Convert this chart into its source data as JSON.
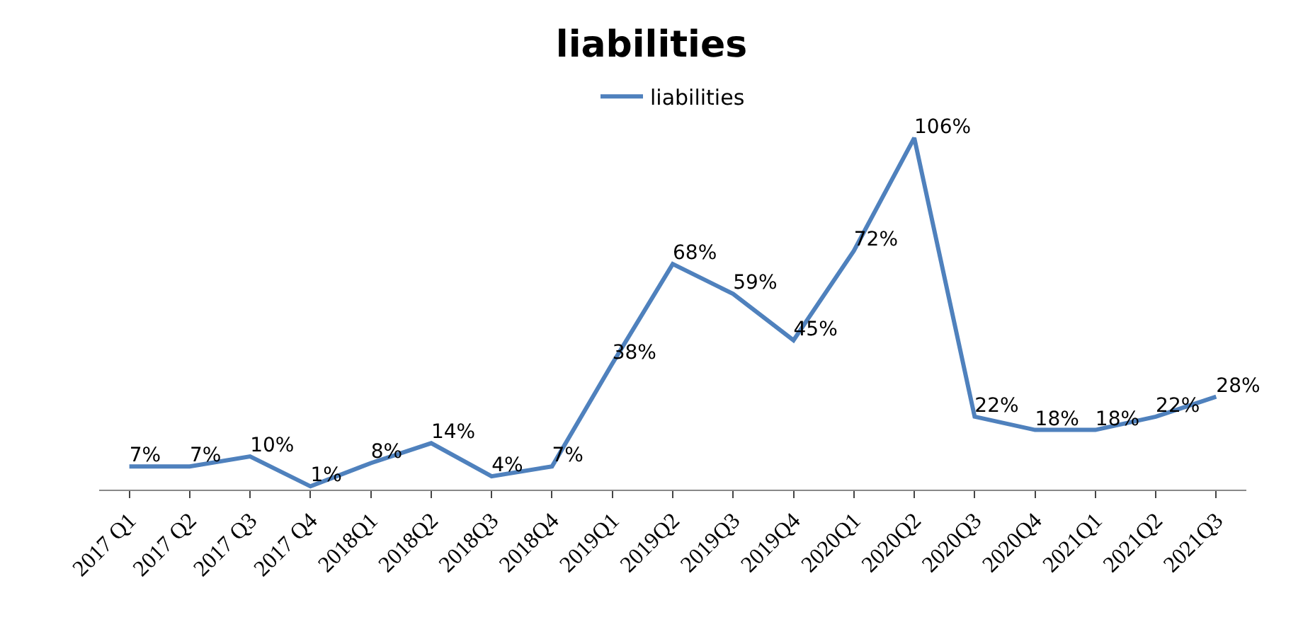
{
  "chart_data": {
    "type": "line",
    "title": "liabilities",
    "categories": [
      "2017 Q1",
      "2017 Q2",
      "2017 Q3",
      "2017 Q4",
      "2018Q1",
      "2018Q2",
      "2018Q3",
      "2018Q4",
      "2019Q1",
      "2019Q2",
      "2019Q3",
      "2019Q4",
      "2020Q1",
      "2020Q2",
      "2020Q3",
      "2020Q4",
      "2021Q1",
      "2021Q2",
      "2021Q3"
    ],
    "series": [
      {
        "name": "liabilities",
        "color": "#4f81bd",
        "values": [
          7,
          7,
          10,
          1,
          8,
          14,
          4,
          7,
          38,
          68,
          59,
          45,
          72,
          106,
          22,
          18,
          18,
          22,
          28
        ],
        "value_labels": [
          "7%",
          "7%",
          "10%",
          "1%",
          "8%",
          "14%",
          "4%",
          "7%",
          "38%",
          "68%",
          "59%",
          "45%",
          "72%",
          "106%",
          "22%",
          "18%",
          "18%",
          "22%",
          "28%"
        ]
      }
    ],
    "legend": "top",
    "marker": "none",
    "line_style": "solid"
  }
}
